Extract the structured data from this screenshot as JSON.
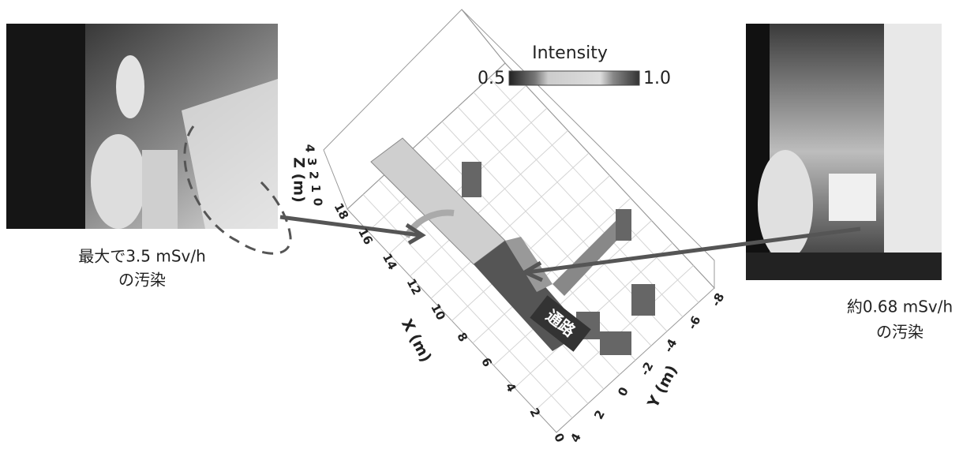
{
  "left_caption": [
    "最大で3.5 mSv/h",
    "の汚染"
  ],
  "right_caption": [
    "約0.68 mSv/h",
    "の汚染"
  ],
  "plot": {
    "colorbar": {
      "title": "Intensity",
      "min_label": "0.5",
      "max_label": "1.0"
    },
    "x_axis": {
      "label": "X (m)",
      "ticks": [
        "0",
        "2",
        "4",
        "6",
        "8",
        "10",
        "12",
        "14",
        "16",
        "18"
      ]
    },
    "y_axis": {
      "label": "Y (m)",
      "ticks": [
        "4",
        "2",
        "0",
        "-2",
        "-4",
        "-6",
        "-8"
      ]
    },
    "z_axis": {
      "label": "Z (m)",
      "ticks": [
        "0",
        "1",
        "2",
        "3",
        "4"
      ]
    },
    "passage_label": "通路"
  }
}
